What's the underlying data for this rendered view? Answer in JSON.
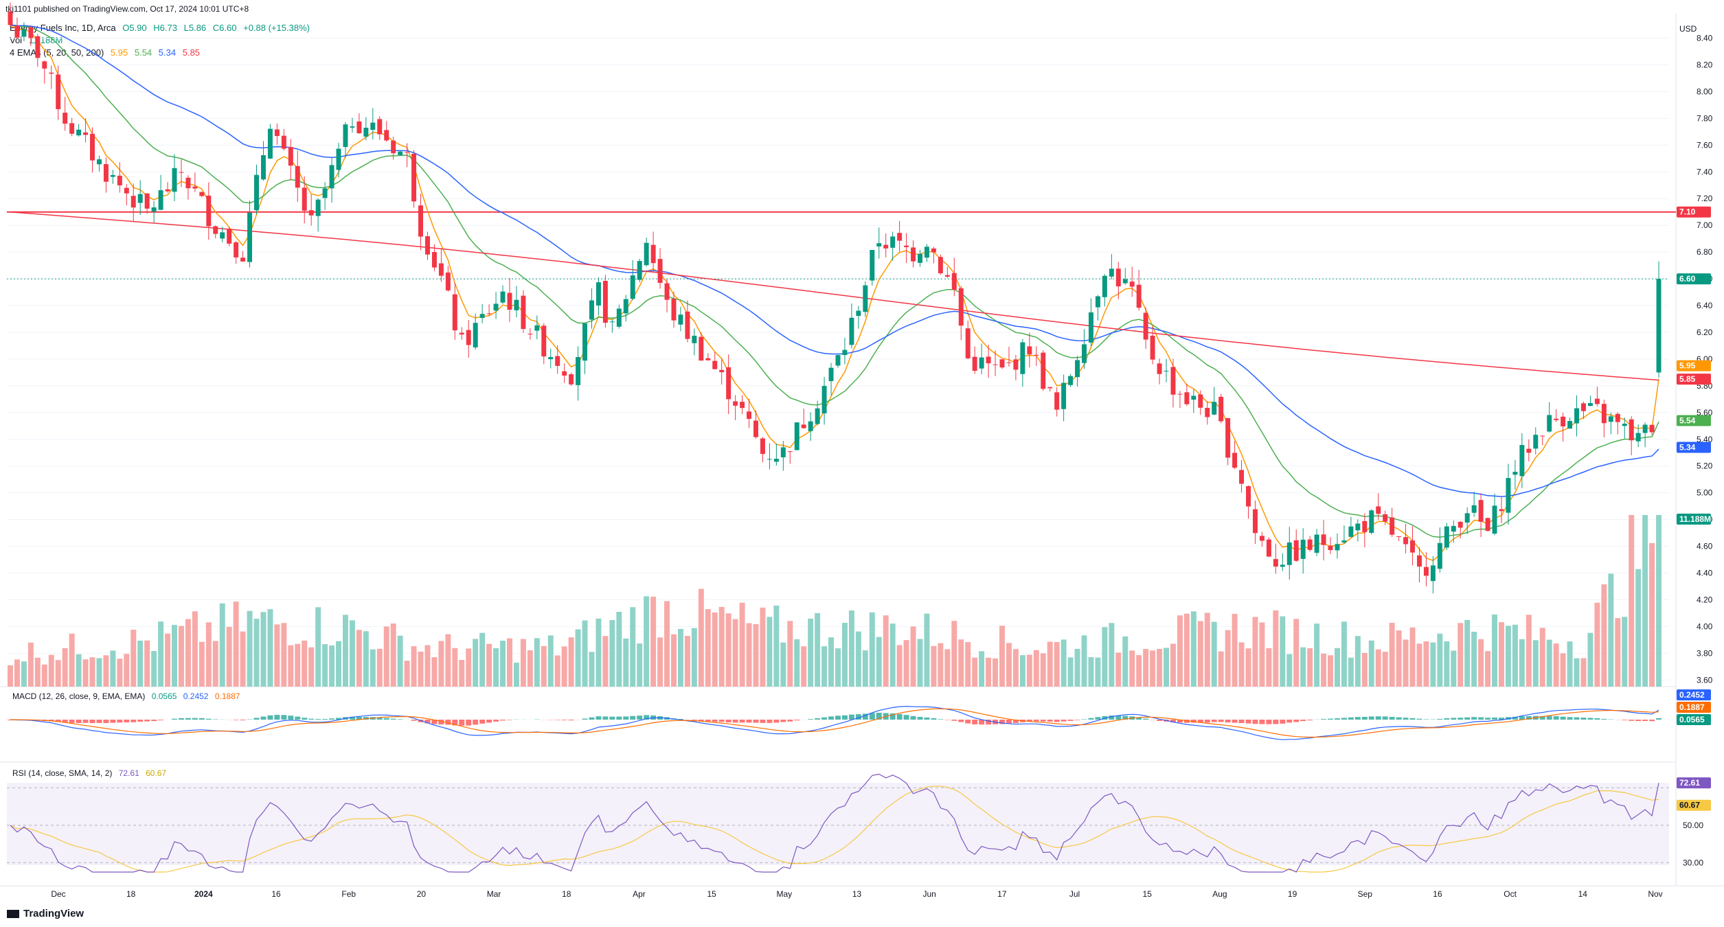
{
  "published_line": "tkj1101 published on TradingView.com, Oct 17, 2024 10:01 UTC+8",
  "legend": {
    "symbol_line": "Energy Fuels Inc, 1D, Arca",
    "ohlc": {
      "open": "O5.90",
      "high": "H6.73",
      "low": "L5.86",
      "close": "C6.60",
      "change": "+0.88 (+15.38%)"
    },
    "vol_label": "Vol",
    "vol_value": "11.188M",
    "ema_label": "4 EMAs (5, 20, 50, 200)",
    "ema_values": [
      "5.95",
      "5.54",
      "5.34",
      "5.85"
    ]
  },
  "currency": "USD",
  "price_axis_ticks": [
    "8.40",
    "8.20",
    "8.00",
    "7.80",
    "7.60",
    "7.40",
    "7.20",
    "7.00",
    "6.80",
    "6.60",
    "6.40",
    "6.20",
    "6.00",
    "5.80",
    "5.60",
    "5.40",
    "5.20",
    "5.00",
    "4.80",
    "4.60",
    "4.40",
    "4.20",
    "4.00",
    "3.80",
    "3.60"
  ],
  "price_badges": [
    {
      "text": "7.10",
      "color": "#f23645",
      "price": 7.1
    },
    {
      "text": "6.60",
      "color": "#089981",
      "price": 6.6
    },
    {
      "text": "5.95",
      "color": "#ff9800",
      "price": 5.95
    },
    {
      "text": "5.85",
      "color": "#f23645",
      "price": 5.85
    },
    {
      "text": "5.54",
      "color": "#4caf50",
      "price": 5.54
    },
    {
      "text": "5.34",
      "color": "#2962ff",
      "price": 5.34
    },
    {
      "text": "11.188M",
      "color": "#089981",
      "price": 4.78
    }
  ],
  "macd": {
    "label": "MACD (12, 26, close, 9, EMA, EMA)",
    "values": [
      "0.0565",
      "0.2452",
      "0.1887"
    ],
    "badges": [
      {
        "text": "0.2452",
        "color": "#2962ff"
      },
      {
        "text": "0.1887",
        "color": "#ff6d00"
      },
      {
        "text": "0.0565",
        "color": "#089981"
      }
    ]
  },
  "rsi": {
    "label": "RSI (14, close, SMA, 14, 2)",
    "values": [
      "72.61",
      "60.67"
    ],
    "axis_ticks": [
      "50.00",
      "30.00"
    ],
    "badges": [
      {
        "text": "72.61",
        "color": "#7e57c2"
      },
      {
        "text": "60.67",
        "color": "#f7c843"
      }
    ]
  },
  "time_axis": [
    "Dec",
    "18",
    "2024",
    "16",
    "Feb",
    "20",
    "Mar",
    "18",
    "Apr",
    "15",
    "May",
    "13",
    "Jun",
    "17",
    "Jul",
    "15",
    "Aug",
    "19",
    "Sep",
    "16",
    "Oct",
    "14",
    "Nov"
  ],
  "logo_text": "TradingView",
  "colors": {
    "up": "#089981",
    "down": "#f23645",
    "ema5": "#ff9800",
    "ema20": "#4caf50",
    "ema50": "#2962ff",
    "ema200": "#f23645",
    "rsi": "#7e57c2",
    "rsi_ma": "#f7c843"
  },
  "chart_data": {
    "type": "candlestick",
    "title": "Energy Fuels Inc, 1D, Arca",
    "ylim": [
      3.55,
      8.48
    ],
    "horizontal_line": 7.1,
    "anchors": [
      [
        0,
        8.5
      ],
      [
        4,
        8.3
      ],
      [
        8,
        7.8
      ],
      [
        14,
        7.4
      ],
      [
        20,
        7.1
      ],
      [
        25,
        7.4
      ],
      [
        30,
        7.0
      ],
      [
        34,
        6.8
      ],
      [
        38,
        7.8
      ],
      [
        40,
        7.5
      ],
      [
        44,
        7.0
      ],
      [
        50,
        7.8
      ],
      [
        54,
        7.7
      ],
      [
        58,
        7.5
      ],
      [
        60,
        7.0
      ],
      [
        63,
        6.6
      ],
      [
        66,
        6.1
      ],
      [
        72,
        6.5
      ],
      [
        78,
        6.1
      ],
      [
        82,
        5.9
      ],
      [
        86,
        6.5
      ],
      [
        88,
        6.2
      ],
      [
        93,
        6.9
      ],
      [
        96,
        6.4
      ],
      [
        102,
        6.0
      ],
      [
        106,
        5.7
      ],
      [
        110,
        5.3
      ],
      [
        113,
        5.3
      ],
      [
        118,
        5.7
      ],
      [
        122,
        6.1
      ],
      [
        127,
        6.9
      ],
      [
        132,
        6.8
      ],
      [
        134,
        6.9
      ],
      [
        138,
        6.5
      ],
      [
        140,
        6.0
      ],
      [
        145,
        5.9
      ],
      [
        149,
        6.1
      ],
      [
        153,
        5.6
      ],
      [
        157,
        6.2
      ],
      [
        160,
        6.7
      ],
      [
        164,
        6.5
      ],
      [
        166,
        6.1
      ],
      [
        170,
        5.8
      ],
      [
        172,
        5.7
      ],
      [
        176,
        5.6
      ],
      [
        180,
        5.1
      ],
      [
        182,
        4.7
      ],
      [
        185,
        4.5
      ],
      [
        190,
        4.6
      ],
      [
        195,
        4.7
      ],
      [
        199,
        4.8
      ],
      [
        202,
        4.7
      ],
      [
        206,
        4.4
      ],
      [
        209,
        4.6
      ],
      [
        213,
        4.9
      ],
      [
        216,
        4.7
      ],
      [
        220,
        5.2
      ],
      [
        224,
        5.5
      ],
      [
        228,
        5.6
      ],
      [
        232,
        5.6
      ],
      [
        235,
        5.5
      ],
      [
        238,
        5.4
      ],
      [
        240,
        5.5
      ],
      [
        241,
        6.6
      ]
    ],
    "volume_anchors": [
      [
        0,
        0.25
      ],
      [
        10,
        0.3
      ],
      [
        20,
        0.35
      ],
      [
        35,
        0.5
      ],
      [
        50,
        0.45
      ],
      [
        60,
        0.3
      ],
      [
        80,
        0.3
      ],
      [
        95,
        0.6
      ],
      [
        110,
        0.45
      ],
      [
        130,
        0.45
      ],
      [
        150,
        0.3
      ],
      [
        180,
        0.45
      ],
      [
        200,
        0.35
      ],
      [
        215,
        0.45
      ],
      [
        230,
        0.35
      ],
      [
        241,
        1.3
      ]
    ],
    "n": 242,
    "series": [
      {
        "name": "EMA 5",
        "color": "#ff9800",
        "last": 5.95
      },
      {
        "name": "EMA 20",
        "color": "#4caf50",
        "last": 5.54
      },
      {
        "name": "EMA 50",
        "color": "#2962ff",
        "last": 5.34
      },
      {
        "name": "EMA 200",
        "color": "#f23645",
        "last": 5.85
      }
    ],
    "rsi_ylim": [
      25,
      80
    ]
  }
}
